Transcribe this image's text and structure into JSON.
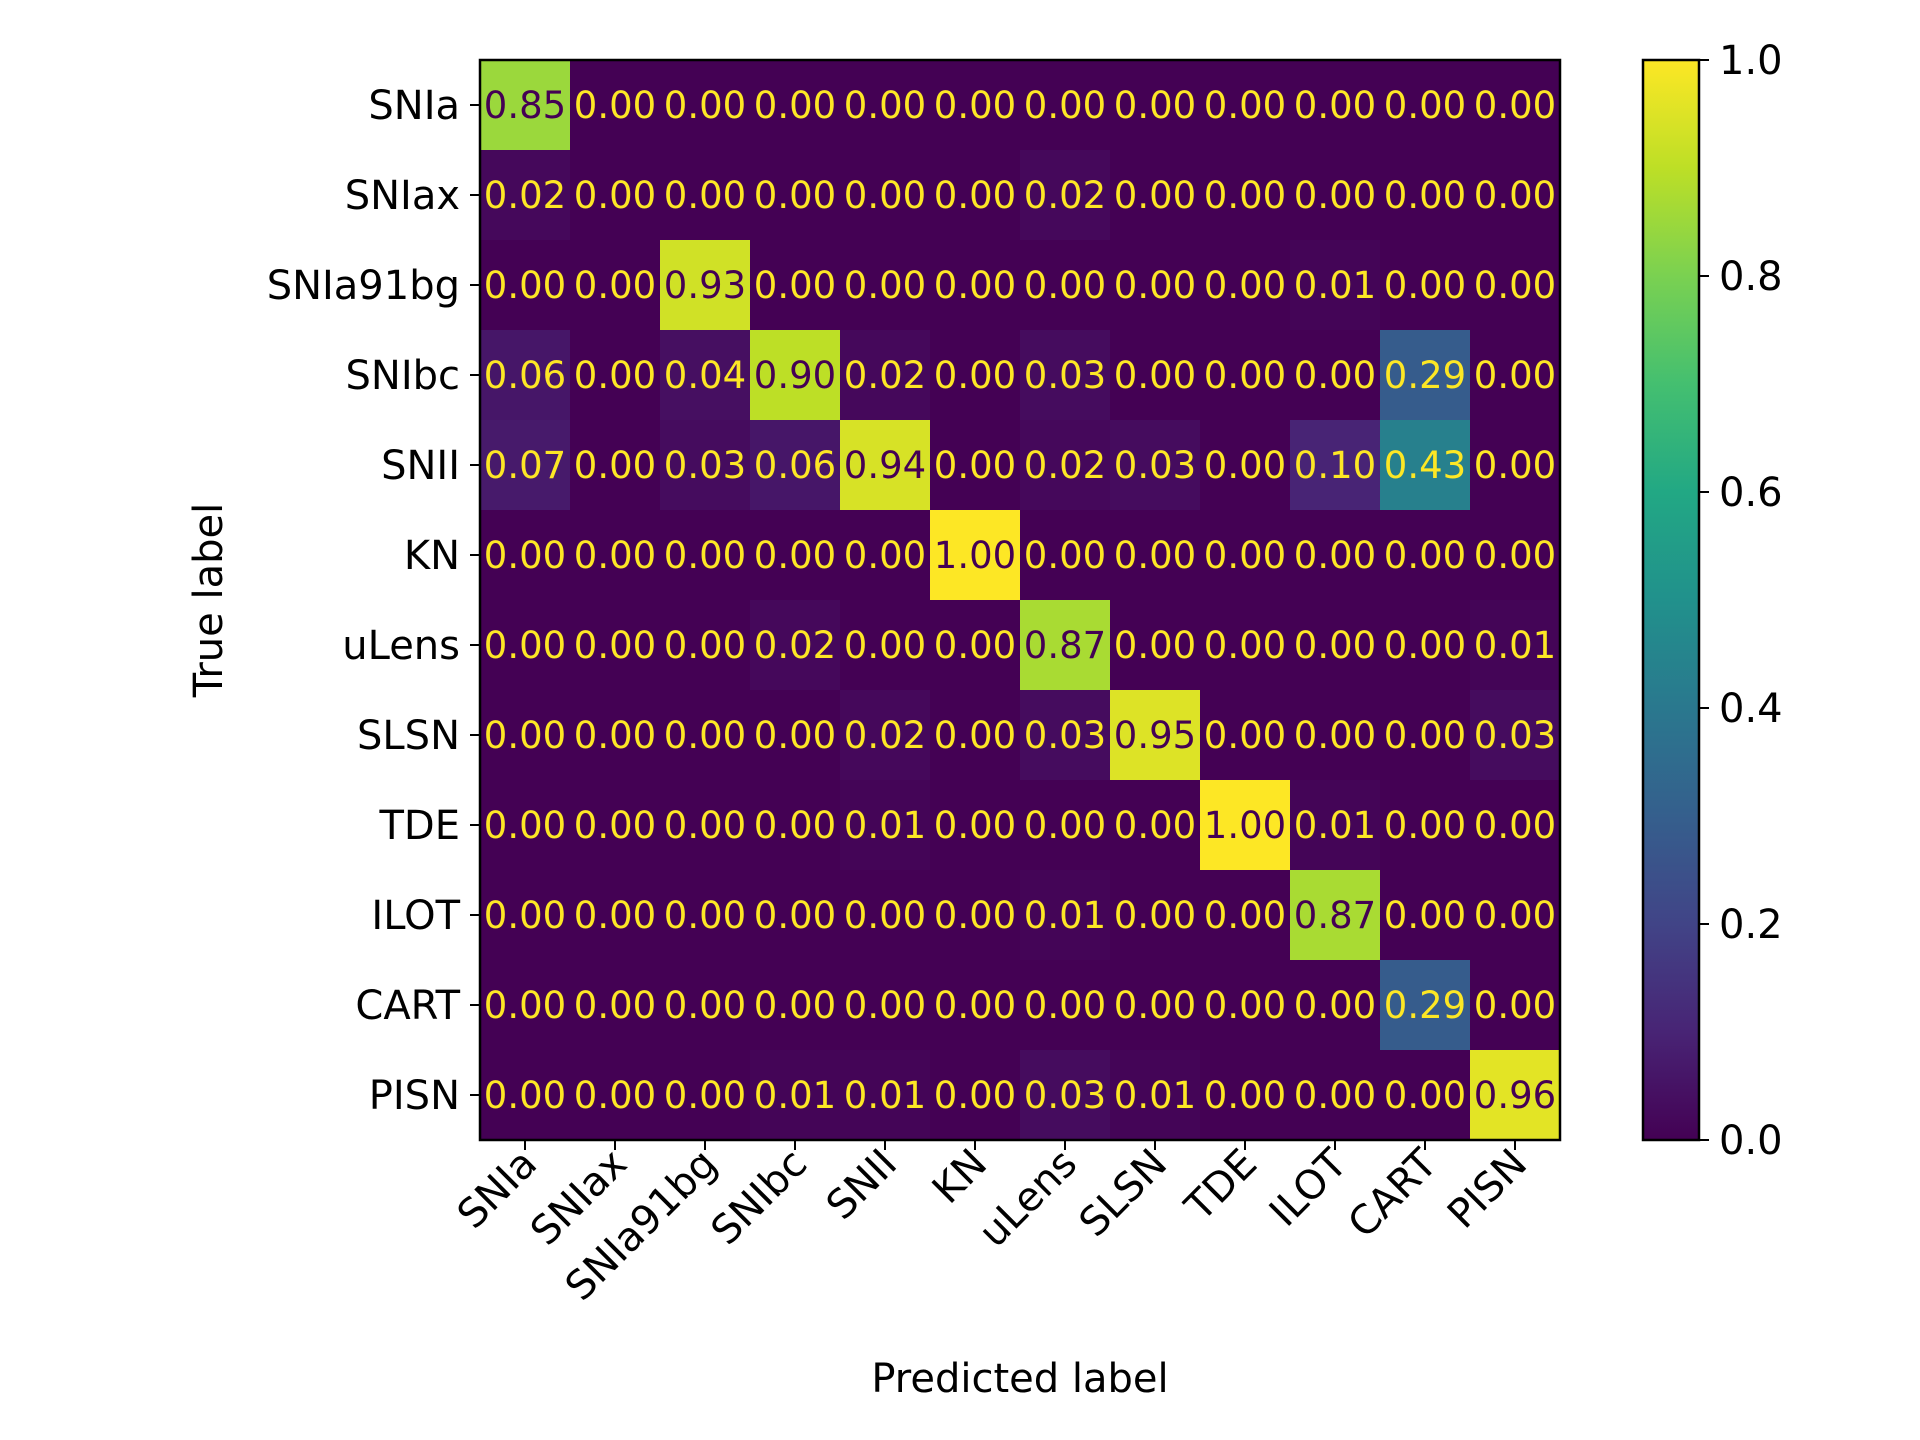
{
  "chart_data": {
    "type": "heatmap",
    "classes": [
      "SNIa",
      "SNIax",
      "SNIa91bg",
      "SNIbc",
      "SNII",
      "KN",
      "uLens",
      "SLSN",
      "TDE",
      "ILOT",
      "CART",
      "PISN"
    ],
    "matrix": [
      [
        0.85,
        0.0,
        0.0,
        0.0,
        0.0,
        0.0,
        0.0,
        0.0,
        0.0,
        0.0,
        0.0,
        0.0
      ],
      [
        0.02,
        0.0,
        0.0,
        0.0,
        0.0,
        0.0,
        0.02,
        0.0,
        0.0,
        0.0,
        0.0,
        0.0
      ],
      [
        0.0,
        0.0,
        0.93,
        0.0,
        0.0,
        0.0,
        0.0,
        0.0,
        0.0,
        0.01,
        0.0,
        0.0
      ],
      [
        0.06,
        0.0,
        0.04,
        0.9,
        0.02,
        0.0,
        0.03,
        0.0,
        0.0,
        0.0,
        0.29,
        0.0
      ],
      [
        0.07,
        0.0,
        0.03,
        0.06,
        0.94,
        0.0,
        0.02,
        0.03,
        0.0,
        0.1,
        0.43,
        0.0
      ],
      [
        0.0,
        0.0,
        0.0,
        0.0,
        0.0,
        1.0,
        0.0,
        0.0,
        0.0,
        0.0,
        0.0,
        0.0
      ],
      [
        0.0,
        0.0,
        0.0,
        0.02,
        0.0,
        0.0,
        0.87,
        0.0,
        0.0,
        0.0,
        0.0,
        0.01
      ],
      [
        0.0,
        0.0,
        0.0,
        0.0,
        0.02,
        0.0,
        0.03,
        0.95,
        0.0,
        0.0,
        0.0,
        0.03
      ],
      [
        0.0,
        0.0,
        0.0,
        0.0,
        0.01,
        0.0,
        0.0,
        0.0,
        1.0,
        0.01,
        0.0,
        0.0
      ],
      [
        0.0,
        0.0,
        0.0,
        0.0,
        0.0,
        0.0,
        0.01,
        0.0,
        0.0,
        0.87,
        0.0,
        0.0
      ],
      [
        0.0,
        0.0,
        0.0,
        0.0,
        0.0,
        0.0,
        0.0,
        0.0,
        0.0,
        0.0,
        0.29,
        0.0
      ],
      [
        0.0,
        0.0,
        0.0,
        0.01,
        0.01,
        0.0,
        0.03,
        0.01,
        0.0,
        0.0,
        0.0,
        0.96
      ]
    ],
    "xlabel": "Predicted label",
    "ylabel": "True label",
    "colorbar": {
      "colormap": "viridis",
      "range": [
        0.0,
        1.0
      ],
      "ticks": [
        "0.0",
        "0.2",
        "0.4",
        "0.6",
        "0.8",
        "1.0"
      ]
    },
    "value_format": "2 decimals",
    "text_colors": {
      "dark_cell": "#fde725",
      "light_cell": "#440154"
    }
  }
}
